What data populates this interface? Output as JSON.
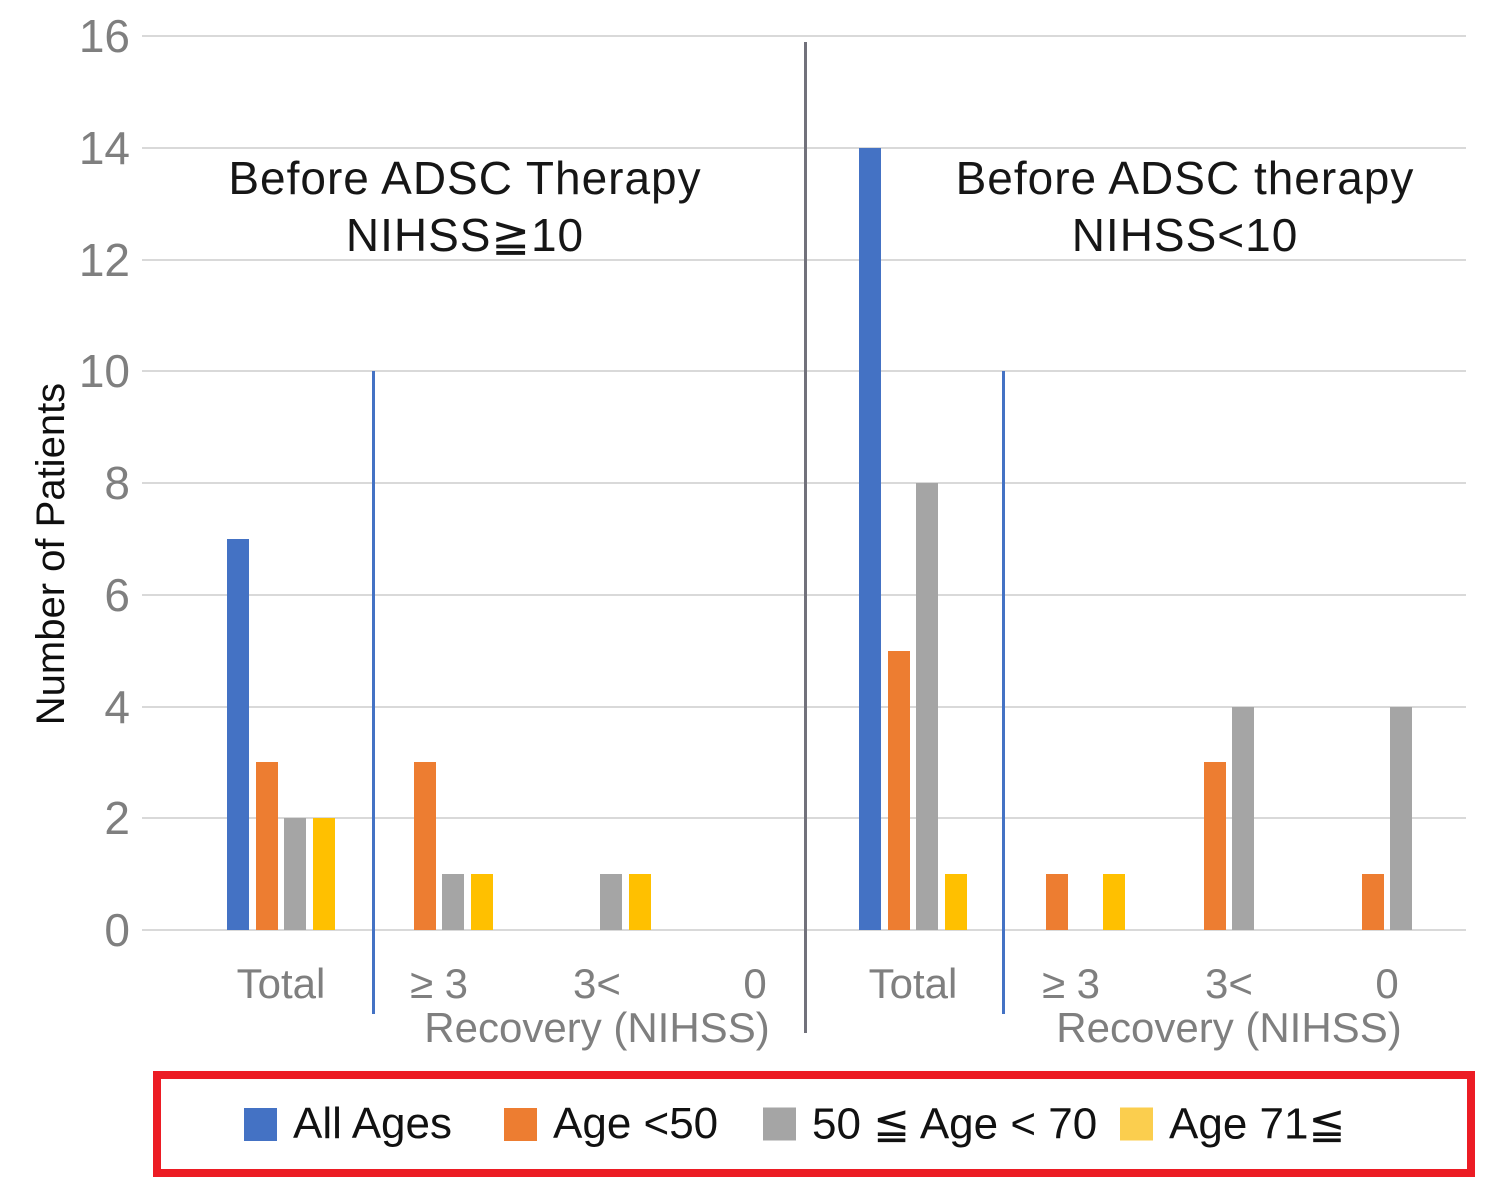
{
  "chart_data": {
    "type": "bar",
    "ylabel": "Number of Patients",
    "ylim": [
      0,
      16
    ],
    "ytick_step": 2,
    "yticks": [
      0,
      2,
      4,
      6,
      8,
      10,
      12,
      14,
      16
    ],
    "grid": true,
    "legend_position": "bottom",
    "categories": [
      "Total",
      "≥ 3",
      "3<",
      "0"
    ],
    "panels": [
      {
        "title": [
          "Before ADSC Therapy",
          "NIHSS≧10"
        ],
        "xlabel": "Recovery (NIHSS)",
        "series": [
          {
            "name": "All Ages",
            "color": "#4472C4",
            "values": [
              7,
              0,
              0,
              0
            ]
          },
          {
            "name": "Age <50",
            "color": "#ED7D31",
            "values": [
              3,
              3,
              0,
              0
            ]
          },
          {
            "name": "50 ≦ Age < 70",
            "color": "#A5A5A5",
            "values": [
              2,
              1,
              1,
              0
            ]
          },
          {
            "name": "Age 71≦",
            "color": "#FFC000",
            "values": [
              2,
              1,
              1,
              0
            ]
          }
        ]
      },
      {
        "title": [
          "Before ADSC therapy",
          "NIHSS<10"
        ],
        "xlabel": "Recovery (NIHSS)",
        "series": [
          {
            "name": "All Ages",
            "color": "#4472C4",
            "values": [
              14,
              0,
              0,
              0
            ]
          },
          {
            "name": "Age <50",
            "color": "#ED7D31",
            "values": [
              5,
              1,
              3,
              1
            ]
          },
          {
            "name": "50 ≦ Age < 70",
            "color": "#A5A5A5",
            "values": [
              8,
              0,
              4,
              4
            ]
          },
          {
            "name": "Age 71≦",
            "color": "#FFC000",
            "values": [
              1,
              1,
              0,
              0
            ]
          }
        ]
      }
    ],
    "annotations": {
      "panel_divider_color": "#71717B",
      "threshold_line_color": "#4472C4",
      "threshold_line_top_value": 10
    }
  },
  "legend": {
    "border_color": "#EC1C24",
    "items": [
      {
        "label": "All Ages",
        "swatch_color": "#4472C4"
      },
      {
        "label": "Age <50",
        "swatch_color": "#ED7D31"
      },
      {
        "label": "50 ≦ Age < 70",
        "swatch_color": "#A5A5A5"
      },
      {
        "label": "Age 71≦",
        "swatch_color": "#FBCE4E"
      }
    ]
  },
  "colors": {
    "gridline": "#D9D9D9",
    "axis_text": "#7F7F7F",
    "title_text": "#161616"
  }
}
